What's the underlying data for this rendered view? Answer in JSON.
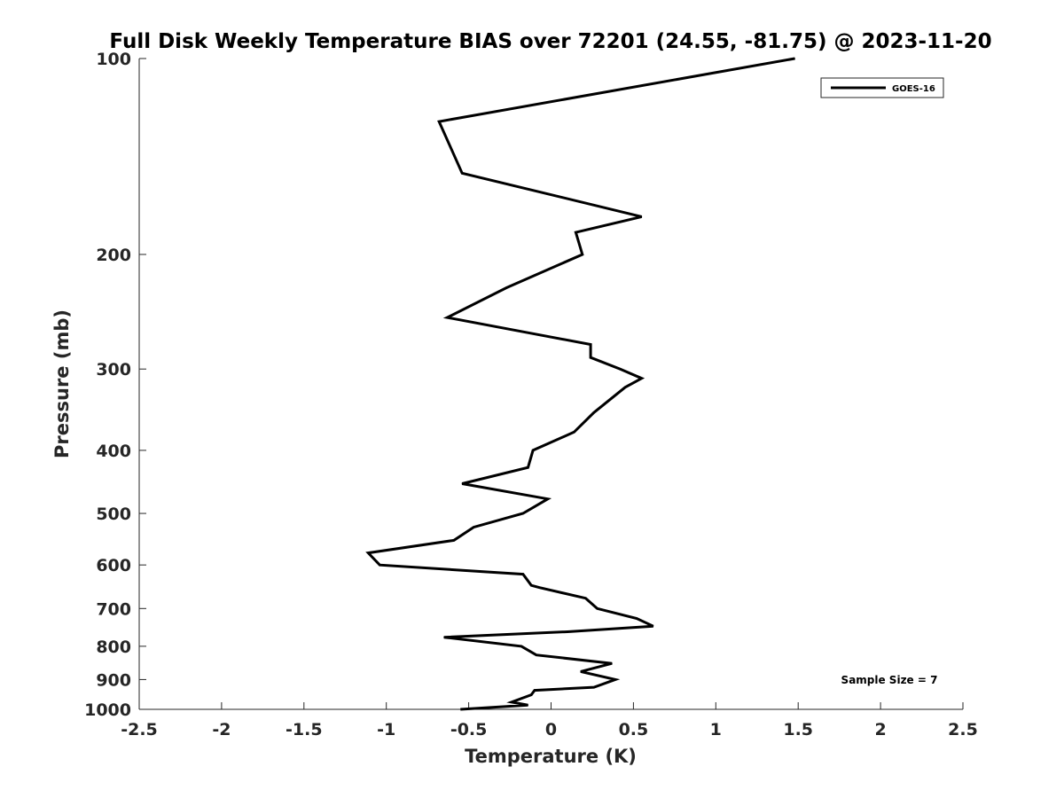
{
  "chart_data": {
    "type": "line",
    "title": "Full Disk Weekly Temperature BIAS over 72201 (24.55, -81.75) @ 2023-11-20",
    "xlabel": "Temperature (K)",
    "ylabel": "Pressure (mb)",
    "xlim": [
      -2.5,
      2.5
    ],
    "ylim": [
      1000,
      100
    ],
    "yscale": "log",
    "y_reversed": true,
    "grid": false,
    "x_ticks": [
      -2.5,
      -2,
      -1.5,
      -1,
      -0.5,
      0,
      0.5,
      1,
      1.5,
      2,
      2.5
    ],
    "x_tick_labels": [
      "-2.5",
      "-2",
      "-1.5",
      "-1",
      "-0.5",
      "0",
      "0.5",
      "1",
      "1.5",
      "2",
      "2.5"
    ],
    "y_ticks": [
      100,
      200,
      300,
      400,
      500,
      600,
      700,
      800,
      900,
      1000
    ],
    "y_tick_labels": [
      "100",
      "200",
      "300",
      "400",
      "500",
      "600",
      "700",
      "800",
      "900",
      "1000"
    ],
    "legend_position": "top-right",
    "series": [
      {
        "name": "GOES-16",
        "color": "#000000",
        "points": [
          {
            "x": 1.48,
            "y": 100
          },
          {
            "x": -0.68,
            "y": 125
          },
          {
            "x": -0.54,
            "y": 150
          },
          {
            "x": 0.55,
            "y": 175
          },
          {
            "x": 0.15,
            "y": 185
          },
          {
            "x": 0.19,
            "y": 200
          },
          {
            "x": -0.27,
            "y": 225
          },
          {
            "x": -0.63,
            "y": 250
          },
          {
            "x": 0.24,
            "y": 275
          },
          {
            "x": 0.24,
            "y": 288
          },
          {
            "x": 0.42,
            "y": 300
          },
          {
            "x": 0.55,
            "y": 310
          },
          {
            "x": 0.45,
            "y": 320
          },
          {
            "x": 0.26,
            "y": 350
          },
          {
            "x": 0.14,
            "y": 375
          },
          {
            "x": -0.11,
            "y": 400
          },
          {
            "x": -0.14,
            "y": 425
          },
          {
            "x": -0.54,
            "y": 450
          },
          {
            "x": -0.02,
            "y": 475
          },
          {
            "x": -0.17,
            "y": 500
          },
          {
            "x": -0.47,
            "y": 525
          },
          {
            "x": -0.59,
            "y": 550
          },
          {
            "x": -1.11,
            "y": 575
          },
          {
            "x": -1.04,
            "y": 600
          },
          {
            "x": -0.17,
            "y": 620
          },
          {
            "x": -0.12,
            "y": 645
          },
          {
            "x": -0.07,
            "y": 650
          },
          {
            "x": 0.21,
            "y": 675
          },
          {
            "x": 0.28,
            "y": 700
          },
          {
            "x": 0.52,
            "y": 725
          },
          {
            "x": 0.62,
            "y": 745
          },
          {
            "x": 0.1,
            "y": 760
          },
          {
            "x": -0.65,
            "y": 775
          },
          {
            "x": -0.18,
            "y": 800
          },
          {
            "x": -0.09,
            "y": 825
          },
          {
            "x": 0.37,
            "y": 850
          },
          {
            "x": 0.18,
            "y": 875
          },
          {
            "x": 0.39,
            "y": 900
          },
          {
            "x": 0.26,
            "y": 925
          },
          {
            "x": -0.1,
            "y": 935
          },
          {
            "x": -0.12,
            "y": 950
          },
          {
            "x": -0.24,
            "y": 975
          },
          {
            "x": -0.14,
            "y": 985
          },
          {
            "x": -0.55,
            "y": 1000
          }
        ]
      }
    ],
    "annotations": [
      "Sample Size = 7"
    ]
  }
}
